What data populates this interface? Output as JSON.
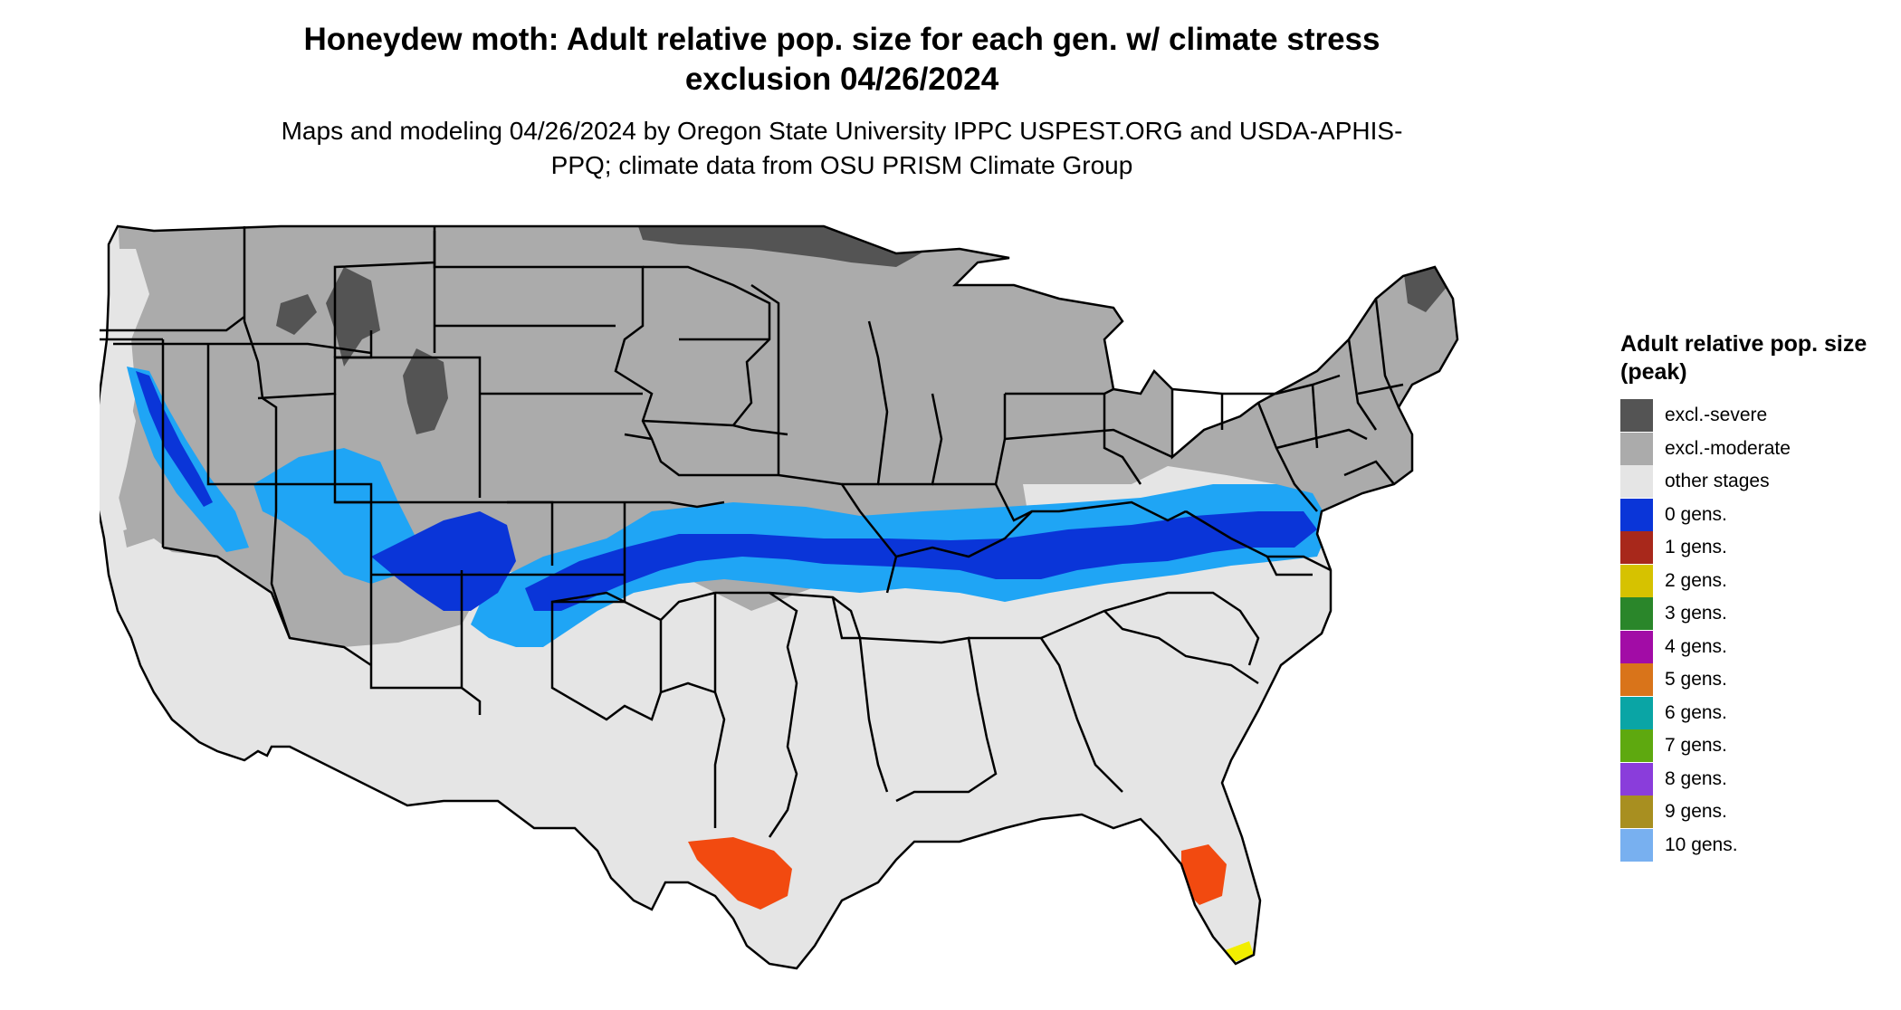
{
  "title": "Honeydew moth: Adult relative pop. size for each gen. w/ climate stress exclusion 04/26/2024",
  "subtitle": "Maps and modeling 04/26/2024 by Oregon State University IPPC USPEST.ORG and USDA-APHIS-PPQ; climate data from OSU PRISM Climate Group",
  "legend": {
    "title": "Adult relative pop. size (peak)",
    "items": [
      {
        "label": "excl.-severe",
        "color": "#545454"
      },
      {
        "label": "excl.-moderate",
        "color": "#ababab"
      },
      {
        "label": "other stages",
        "color": "#e5e5e5"
      },
      {
        "label": "0 gens.",
        "color": "#0a35d8"
      },
      {
        "label": "1 gens.",
        "color": "#a8281b"
      },
      {
        "label": "2 gens.",
        "color": "#d6c200"
      },
      {
        "label": "3 gens.",
        "color": "#2a862a"
      },
      {
        "label": "4 gens.",
        "color": "#a20ca6"
      },
      {
        "label": "5 gens.",
        "color": "#d9741a"
      },
      {
        "label": "6 gens.",
        "color": "#0aa5a5"
      },
      {
        "label": "7 gens.",
        "color": "#5ea90f"
      },
      {
        "label": "8 gens.",
        "color": "#8a3ddb"
      },
      {
        "label": "9 gens.",
        "color": "#a88f20"
      },
      {
        "label": "10 gens.",
        "color": "#78b0f0"
      }
    ]
  },
  "colors": {
    "water": "#ffffff",
    "land_other": "#e5e5e5",
    "excl_moderate": "#ababab",
    "excl_severe": "#545454",
    "gen0_dark": "#0a35d8",
    "gen0_light": "#1fa5f5",
    "hot_orange": "#f24a10",
    "yellow": "#f2ee00",
    "border": "#000000"
  }
}
